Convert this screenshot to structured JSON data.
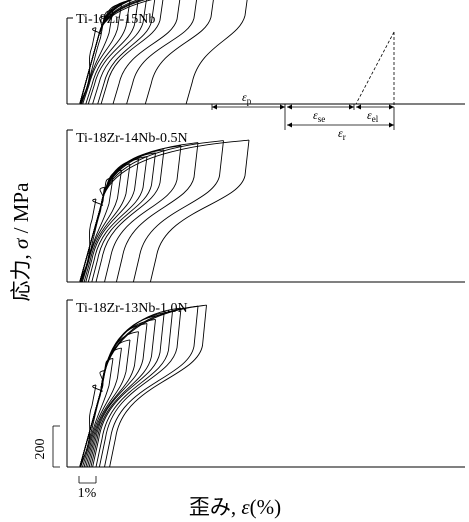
{
  "chart_data": {
    "type": "line",
    "ylabel": "応力, σ / MPa",
    "xlabel": "歪み, ε(%)",
    "ylabel_plain": "応力, ",
    "ylabel_sym": "σ",
    "ylabel_unit": " / MPa",
    "xlabel_plain": "歪み, ",
    "xlabel_sym": "ε",
    "xlabel_unit": "(%)",
    "scale_bars": {
      "stress_label": "200",
      "stress_MPa": 200,
      "strain_label": "1%",
      "strain_percent": 1
    },
    "annotations": {
      "eps_p": "ε",
      "eps_p_sub": "p",
      "eps_se": "ε",
      "eps_se_sub": "se",
      "eps_el": "ε",
      "eps_el_sub": "el",
      "eps_r": "ε",
      "eps_r_sub": "r"
    },
    "panels": [
      {
        "label": "Ti-18Zr-15Nb",
        "max_stress_MPa": 580,
        "cycles": [
          {
            "max_strain": 1.0,
            "max_stress": 372,
            "residual_strain": 0.05
          },
          {
            "max_strain": 1.5,
            "max_stress": 430,
            "residual_strain": 0.1
          },
          {
            "max_strain": 2.0,
            "max_stress": 460,
            "residual_strain": 0.15
          },
          {
            "max_strain": 2.5,
            "max_stress": 488,
            "residual_strain": 0.22
          },
          {
            "max_strain": 3.0,
            "max_stress": 505,
            "residual_strain": 0.4
          },
          {
            "max_strain": 3.5,
            "max_stress": 516,
            "residual_strain": 0.55
          },
          {
            "max_strain": 4.0,
            "max_stress": 528,
            "residual_strain": 0.8
          },
          {
            "max_strain": 4.5,
            "max_stress": 535,
            "residual_strain": 1.1
          },
          {
            "max_strain": 5.0,
            "max_stress": 545,
            "residual_strain": 1.3
          },
          {
            "max_strain": 6.0,
            "max_stress": 550,
            "residual_strain": 2.0
          },
          {
            "max_strain": 7.0,
            "max_stress": 558,
            "residual_strain": 2.8
          },
          {
            "max_strain": 8.0,
            "max_stress": 565,
            "residual_strain": 3.9
          },
          {
            "max_strain": 10.0,
            "max_stress": 575,
            "residual_strain": 6.3
          }
        ]
      },
      {
        "label": "Ti-18Zr-14Nb-0.5N",
        "max_stress_MPa": 700,
        "cycles": [
          {
            "max_strain": 1.0,
            "max_stress": 405,
            "residual_strain": 0.05
          },
          {
            "max_strain": 1.5,
            "max_stress": 462,
            "residual_strain": 0.1
          },
          {
            "max_strain": 2.0,
            "max_stress": 510,
            "residual_strain": 0.15
          },
          {
            "max_strain": 2.5,
            "max_stress": 545,
            "residual_strain": 0.2
          },
          {
            "max_strain": 3.0,
            "max_stress": 575,
            "residual_strain": 0.3
          },
          {
            "max_strain": 3.5,
            "max_stress": 600,
            "residual_strain": 0.4
          },
          {
            "max_strain": 4.0,
            "max_stress": 612,
            "residual_strain": 0.55
          },
          {
            "max_strain": 4.5,
            "max_stress": 630,
            "residual_strain": 0.75
          },
          {
            "max_strain": 5.0,
            "max_stress": 645,
            "residual_strain": 1.0
          },
          {
            "max_strain": 6.0,
            "max_stress": 665,
            "residual_strain": 1.5
          },
          {
            "max_strain": 7.0,
            "max_stress": 680,
            "residual_strain": 2.2
          },
          {
            "max_strain": 8.5,
            "max_stress": 690,
            "residual_strain": 3.2
          },
          {
            "max_strain": 10.0,
            "max_stress": 692,
            "residual_strain": 4.2
          }
        ]
      },
      {
        "label": "Ti-18Zr-13Nb-1.0N",
        "max_stress_MPa": 800,
        "cycles": [
          {
            "max_strain": 1.0,
            "max_stress": 400,
            "residual_strain": 0.05
          },
          {
            "max_strain": 1.5,
            "max_stress": 470,
            "residual_strain": 0.1
          },
          {
            "max_strain": 2.0,
            "max_stress": 530,
            "residual_strain": 0.2
          },
          {
            "max_strain": 2.5,
            "max_stress": 580,
            "residual_strain": 0.3
          },
          {
            "max_strain": 3.0,
            "max_stress": 620,
            "residual_strain": 0.4
          },
          {
            "max_strain": 3.5,
            "max_stress": 660,
            "residual_strain": 0.5
          },
          {
            "max_strain": 4.0,
            "max_stress": 700,
            "residual_strain": 0.6
          },
          {
            "max_strain": 4.5,
            "max_stress": 720,
            "residual_strain": 0.7
          },
          {
            "max_strain": 5.0,
            "max_stress": 745,
            "residual_strain": 0.8
          },
          {
            "max_strain": 5.5,
            "max_stress": 760,
            "residual_strain": 1.0
          },
          {
            "max_strain": 6.0,
            "max_stress": 775,
            "residual_strain": 1.2
          },
          {
            "max_strain": 7.0,
            "max_stress": 785,
            "residual_strain": 1.5
          },
          {
            "max_strain": 7.5,
            "max_stress": 790,
            "residual_strain": 1.8
          }
        ]
      }
    ]
  }
}
